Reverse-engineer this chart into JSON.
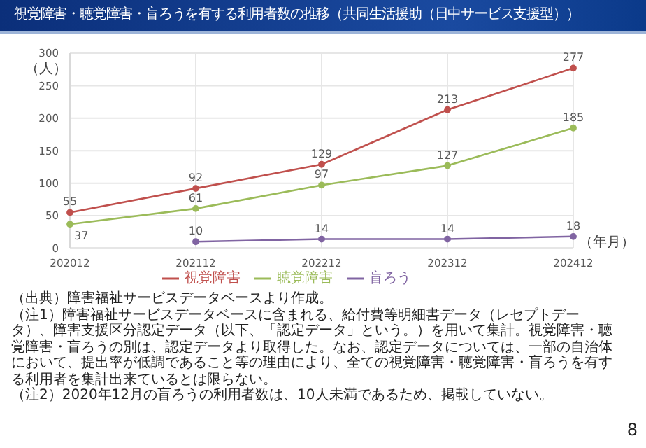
{
  "chart_data": {
    "type": "line",
    "title": "視覚障害・聴覚障害・盲ろうを有する利用者数の推移（共同生活援助（日中サービス支援型））",
    "xlabel": "（年月）",
    "ylabel": "（人）",
    "categories": [
      "202012",
      "202112",
      "202212",
      "202312",
      "202412"
    ],
    "series": [
      {
        "name": "視覚障害",
        "color": "#c0504d",
        "values": [
          55,
          92,
          129,
          213,
          277
        ]
      },
      {
        "name": "聴覚障害",
        "color": "#9bbb59",
        "values": [
          37,
          61,
          97,
          127,
          185
        ]
      },
      {
        "name": "盲ろう",
        "color": "#8064a2",
        "values": [
          null,
          10,
          14,
          14,
          18
        ]
      }
    ],
    "ylim": [
      0,
      300
    ],
    "yticks": [
      0,
      50,
      100,
      150,
      200,
      250,
      300
    ],
    "grid": true,
    "legend": "bottom",
    "marker": "circle",
    "line_style": "solid",
    "data_labels": true,
    "annotations": [
      "（出典）障害福祉サービスデータベースより作成。",
      "（注1）障害福祉サービスデータベースに含まれる、給付費等明細書データ（レセプトデータ）、障害支援区分認定データ（以下、「認定データ」という。）を用いて集計。視覚障害・聴覚障害・盲ろうの別は、認定データより取得した。なお、認定データについては、一部の自治体において、提出率が低調であること等の理由により、全ての視覚障害・聴覚障害・盲ろうを有する利用者を集計出来ているとは限らない。",
      "（注2）2020年12月の盲ろうの利用者数は、10人未満であるため、掲載していない。",
      "8"
    ]
  }
}
